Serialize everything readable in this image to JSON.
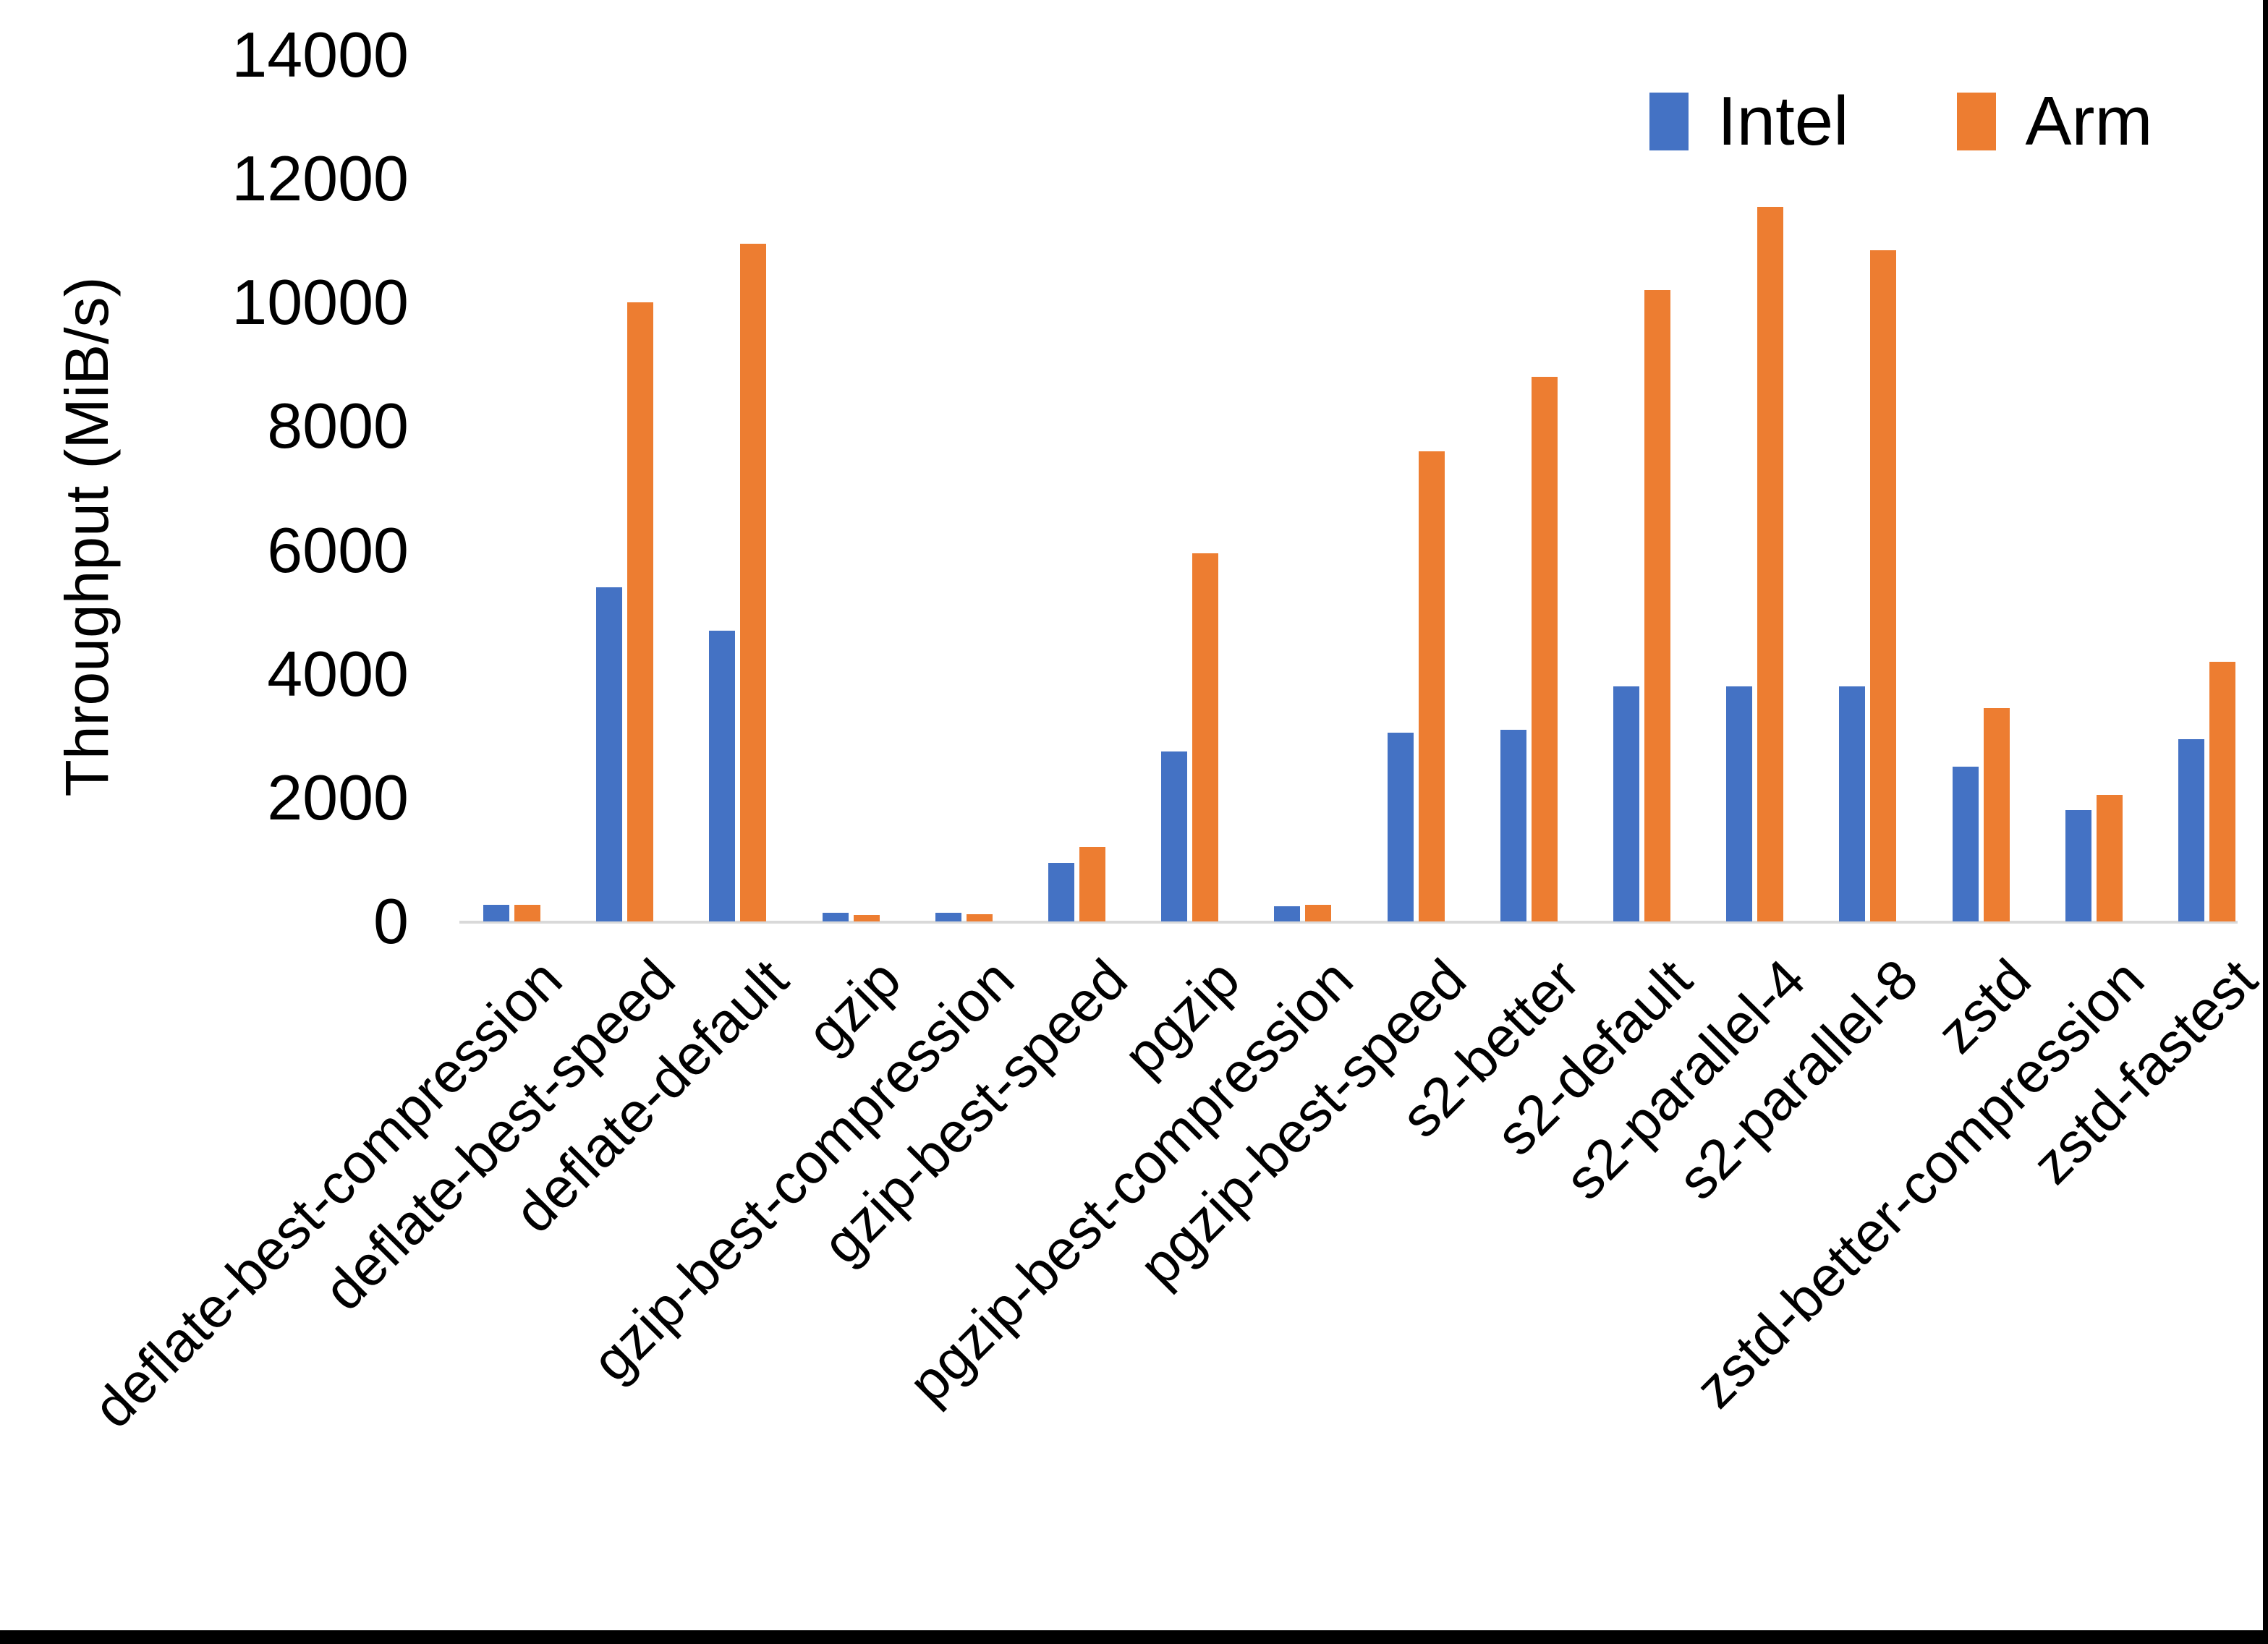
{
  "chart_data": {
    "type": "bar",
    "title": "",
    "ylabel": "Throughput (MiB/s)",
    "xlabel": "",
    "ylim": [
      0,
      14000
    ],
    "y_ticks": [
      0,
      2000,
      4000,
      6000,
      8000,
      10000,
      12000,
      14000
    ],
    "grid": false,
    "legend_position": "top-right",
    "categories": [
      "deflate-best-compression",
      "deflate-best-speed",
      "deflate-default",
      "gzip",
      "gzip-best-compression",
      "gzip-best-speed",
      "pgzip",
      "pgzip-best-compression",
      "pgzip-best-speed",
      "s2-better",
      "s2-default",
      "s2-parallel-4",
      "s2-parallel-8",
      "zstd",
      "zstd-better-compression",
      "zstd-fastest"
    ],
    "series": [
      {
        "name": "Intel",
        "color": "#4472C4",
        "values": [
          270,
          5400,
          4700,
          140,
          140,
          950,
          2750,
          250,
          3050,
          3100,
          3800,
          3800,
          3800,
          2500,
          1800,
          2950
        ]
      },
      {
        "name": "Arm",
        "color": "#ED7D31",
        "values": [
          270,
          10000,
          10950,
          110,
          120,
          1200,
          5950,
          265,
          7600,
          8800,
          10200,
          11550,
          10850,
          3450,
          2050,
          4200
        ]
      }
    ],
    "axis_line_color": "#D9D9D9",
    "text_color": "#000000"
  },
  "frame": {
    "right_edge_color": "#000000",
    "bottom_edge_color": "#000000"
  }
}
